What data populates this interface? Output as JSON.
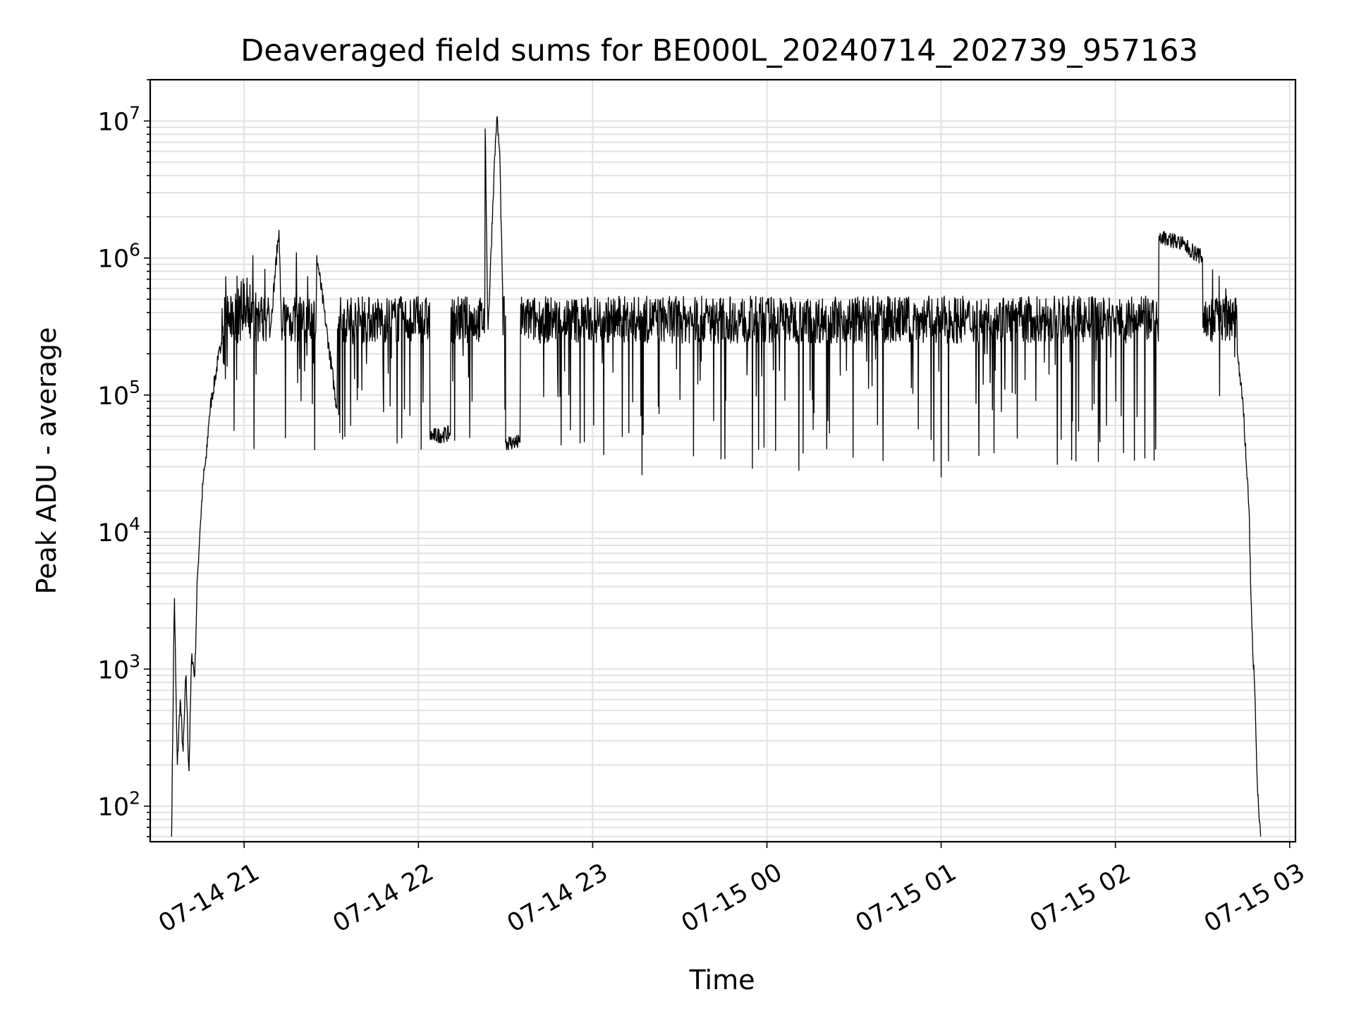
{
  "chart_data": {
    "type": "line",
    "title": "Deaveraged field sums for BE000L_20240714_202739_957163",
    "xlabel": "Time",
    "ylabel": "Peak ADU - average",
    "x_range": [
      "2024-07-14 20:27:39",
      "2024-07-15 03:02:00"
    ],
    "y_scale": "log",
    "ylim": [
      55,
      20000000
    ],
    "grid": true,
    "x_ticks": [
      {
        "label": "07-14 21",
        "value": "2024-07-14 21:00"
      },
      {
        "label": "07-14 22",
        "value": "2024-07-14 22:00"
      },
      {
        "label": "07-14 23",
        "value": "2024-07-14 23:00"
      },
      {
        "label": "07-15 00",
        "value": "2024-07-15 00:00"
      },
      {
        "label": "07-15 01",
        "value": "2024-07-15 01:00"
      },
      {
        "label": "07-15 02",
        "value": "2024-07-15 02:00"
      },
      {
        "label": "07-15 03",
        "value": "2024-07-15 03:00"
      }
    ],
    "y_ticks": [
      {
        "base": "10",
        "exp": "2",
        "value": 100
      },
      {
        "base": "10",
        "exp": "3",
        "value": 1000
      },
      {
        "base": "10",
        "exp": "4",
        "value": 10000
      },
      {
        "base": "10",
        "exp": "5",
        "value": 100000
      },
      {
        "base": "10",
        "exp": "6",
        "value": 1000000
      },
      {
        "base": "10",
        "exp": "7",
        "value": 10000000
      }
    ],
    "series": [
      {
        "color": "#000000",
        "points": [
          [
            "2024-07-14 20:35",
            60
          ],
          [
            "2024-07-14 20:36",
            3300
          ],
          [
            "2024-07-14 20:37",
            200
          ],
          [
            "2024-07-14 20:38",
            600
          ],
          [
            "2024-07-14 20:39",
            250
          ],
          [
            "2024-07-14 20:40",
            900
          ],
          [
            "2024-07-14 20:41",
            180
          ],
          [
            "2024-07-14 20:42",
            1300
          ],
          [
            "2024-07-14 20:43",
            900
          ],
          [
            "2024-07-14 20:44",
            5000
          ],
          [
            "2024-07-14 20:45",
            12000
          ],
          [
            "2024-07-14 20:46",
            25000
          ],
          [
            "2024-07-14 20:47",
            35000
          ],
          [
            "2024-07-14 20:48",
            70000
          ],
          [
            "2024-07-14 20:49",
            100000
          ],
          [
            "2024-07-14 20:50",
            130000
          ],
          [
            "2024-07-14 20:51",
            180000
          ],
          [
            "2024-07-14 20:52",
            220000
          ],
          [
            "2024-07-14 20:53",
            270000
          ],
          [
            "2024-07-14 20:54",
            330000
          ],
          [
            "2024-07-14 20:55",
            400000
          ],
          [
            "2024-07-14 20:56",
            480000
          ],
          [
            "2024-07-14 20:57",
            550000
          ],
          [
            "2024-07-14 20:58",
            600000
          ],
          [
            "2024-07-14 20:59",
            680000
          ],
          [
            "2024-07-14 21:00",
            650000
          ],
          [
            "2024-07-14 21:01",
            720000
          ],
          [
            "2024-07-14 21:02",
            640000
          ],
          [
            "2024-07-14 21:03",
            1050000
          ],
          [
            "2024-07-14 21:04",
            560000
          ],
          [
            "2024-07-14 21:05",
            480000
          ],
          [
            "2024-07-14 21:06",
            520000
          ],
          [
            "2024-07-14 21:07",
            350000
          ],
          [
            "2024-07-14 21:08",
            430000
          ],
          [
            "2024-07-14 21:09",
            300000
          ],
          [
            "2024-07-14 21:12",
            1600000
          ],
          [
            "2024-07-14 21:13",
            250000
          ],
          [
            "2024-07-14 22:23",
            8800000
          ],
          [
            "2024-07-14 22:24",
            300000
          ],
          [
            "2024-07-14 22:26",
            4000000
          ],
          [
            "2024-07-14 22:27",
            10500000
          ],
          [
            "2024-07-14 22:28",
            6000000
          ],
          [
            "2024-07-14 22:29",
            600000
          ],
          [
            "2024-07-14 22:30",
            380000
          ],
          [
            "2024-07-14 21:18",
            1100000
          ],
          [
            "2024-07-14 21:25",
            1050000
          ],
          [
            "2024-07-14 21:32",
            80000
          ],
          [
            "2024-07-14 21:48",
            75000
          ],
          [
            "2024-07-14 22:04",
            50000
          ],
          [
            "2024-07-14 22:11",
            52000
          ],
          [
            "2024-07-14 22:30",
            45000
          ],
          [
            "2024-07-14 22:35",
            45000
          ],
          [
            "2024-07-14 23:17",
            26000
          ],
          [
            "2024-07-14 23:55",
            29000
          ],
          [
            "2024-07-15 00:11",
            28000
          ],
          [
            "2024-07-15 00:40",
            33000
          ],
          [
            "2024-07-15 01:00",
            25000
          ],
          [
            "2024-07-15 01:13",
            36000
          ],
          [
            "2024-07-15 01:40",
            31000
          ],
          [
            "2024-07-15 02:15",
            1450000
          ],
          [
            "2024-07-15 02:22",
            1300000
          ],
          [
            "2024-07-15 02:30",
            1000000
          ],
          [
            "2024-07-15 02:38",
            600000
          ],
          [
            "2024-07-15 02:40",
            400000
          ],
          [
            "2024-07-15 02:42",
            200000
          ],
          [
            "2024-07-15 02:44",
            80000
          ],
          [
            "2024-07-15 02:46",
            15000
          ],
          [
            "2024-07-15 02:47",
            2000
          ],
          [
            "2024-07-15 02:48",
            700
          ],
          [
            "2024-07-15 02:49",
            120
          ],
          [
            "2024-07-15 02:50",
            60
          ]
        ]
      }
    ]
  }
}
